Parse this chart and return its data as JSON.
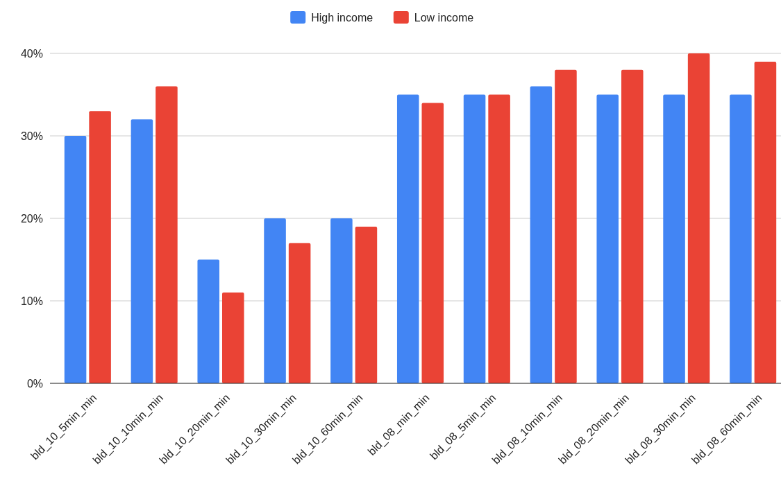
{
  "chart_data": {
    "type": "bar",
    "categories": [
      "bld_10_5min_min",
      "bld_10_10min_min",
      "bld_10_20min_min",
      "bld_10_30min_min",
      "bld_10_60min_min",
      "bld_08_min_min",
      "bld_08_5min_min",
      "bld_08_10min_min",
      "bld_08_20min_min",
      "bld_08_30min_min",
      "bld_08_60min_min"
    ],
    "series": [
      {
        "name": "High income",
        "color": "#4285f4",
        "values": [
          30,
          32,
          15,
          20,
          20,
          35,
          35,
          36,
          35,
          35,
          35
        ]
      },
      {
        "name": "Low income",
        "color": "#ea4335",
        "values": [
          33,
          36,
          11,
          17,
          19,
          34,
          35,
          38,
          38,
          40,
          39
        ]
      }
    ],
    "ylim": [
      0,
      40
    ],
    "yticks": [
      {
        "value": 0,
        "label": "0%"
      },
      {
        "value": 10,
        "label": "10%"
      },
      {
        "value": 20,
        "label": "20%"
      },
      {
        "value": 30,
        "label": "30%"
      },
      {
        "value": 40,
        "label": "40%"
      }
    ],
    "grid": "y",
    "legend": "top"
  }
}
